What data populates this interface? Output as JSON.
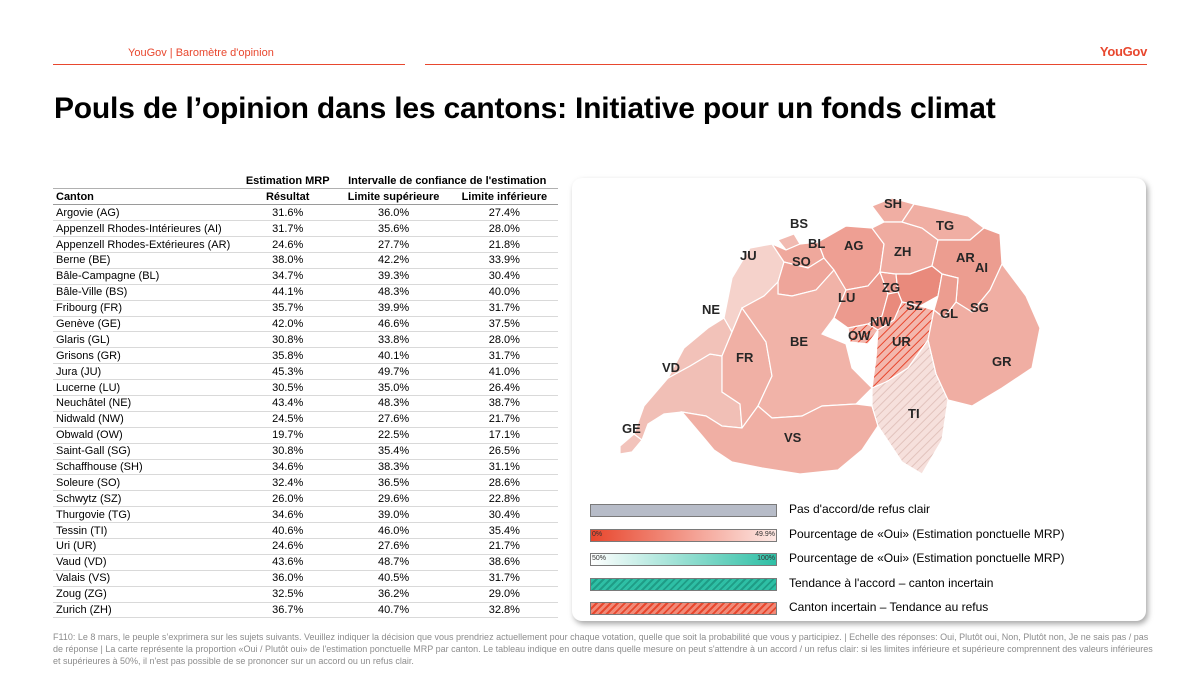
{
  "header": {
    "left_label": "YouGov | Baromètre d'opinion",
    "logo": "YouGov"
  },
  "title": "Pouls de l’opinion dans les cantons: Initiative pour un fonds climat",
  "table": {
    "group_headers": [
      "Estimation MRP",
      "Intervalle de confiance de l'estimation"
    ],
    "columns": [
      "Canton",
      "Résultat",
      "Limite supérieure",
      "Limite inférieure"
    ],
    "rows": [
      [
        "Argovie (AG)",
        "31.6%",
        "36.0%",
        "27.4%"
      ],
      [
        "Appenzell Rhodes-Intérieures (AI)",
        "31.7%",
        "35.6%",
        "28.0%"
      ],
      [
        "Appenzell Rhodes-Extérieures (AR)",
        "24.6%",
        "27.7%",
        "21.8%"
      ],
      [
        "Berne (BE)",
        "38.0%",
        "42.2%",
        "33.9%"
      ],
      [
        "Bâle-Campagne (BL)",
        "34.7%",
        "39.3%",
        "30.4%"
      ],
      [
        "Bâle-Ville (BS)",
        "44.1%",
        "48.3%",
        "40.0%"
      ],
      [
        "Fribourg (FR)",
        "35.7%",
        "39.9%",
        "31.7%"
      ],
      [
        "Genève (GE)",
        "42.0%",
        "46.6%",
        "37.5%"
      ],
      [
        "Glaris (GL)",
        "30.8%",
        "33.8%",
        "28.0%"
      ],
      [
        "Grisons (GR)",
        "35.8%",
        "40.1%",
        "31.7%"
      ],
      [
        "Jura (JU)",
        "45.3%",
        "49.7%",
        "41.0%"
      ],
      [
        "Lucerne (LU)",
        "30.5%",
        "35.0%",
        "26.4%"
      ],
      [
        "Neuchâtel (NE)",
        "43.4%",
        "48.3%",
        "38.7%"
      ],
      [
        "Nidwald (NW)",
        "24.5%",
        "27.6%",
        "21.7%"
      ],
      [
        "Obwald (OW)",
        "19.7%",
        "22.5%",
        "17.1%"
      ],
      [
        "Saint-Gall (SG)",
        "30.8%",
        "35.4%",
        "26.5%"
      ],
      [
        "Schaffhouse (SH)",
        "34.6%",
        "38.3%",
        "31.1%"
      ],
      [
        "Soleure (SO)",
        "32.4%",
        "36.5%",
        "28.6%"
      ],
      [
        "Schwytz (SZ)",
        "26.0%",
        "29.6%",
        "22.8%"
      ],
      [
        "Thurgovie (TG)",
        "34.6%",
        "39.0%",
        "30.4%"
      ],
      [
        "Tessin (TI)",
        "40.6%",
        "46.0%",
        "35.4%"
      ],
      [
        "Uri (UR)",
        "24.6%",
        "27.6%",
        "21.7%"
      ],
      [
        "Vaud (VD)",
        "43.6%",
        "48.7%",
        "38.6%"
      ],
      [
        "Valais (VS)",
        "36.0%",
        "40.5%",
        "31.7%"
      ],
      [
        "Zoug (ZG)",
        "32.5%",
        "36.2%",
        "29.0%"
      ],
      [
        "Zurich (ZH)",
        "36.7%",
        "40.7%",
        "32.8%"
      ]
    ]
  },
  "map": {
    "labels": [
      "SH",
      "BS",
      "TG",
      "BL",
      "AG",
      "ZH",
      "JU",
      "SO",
      "AR",
      "AI",
      "ZG",
      "LU",
      "SZ",
      "SG",
      "NE",
      "NW",
      "GL",
      "OW",
      "UR",
      "BE",
      "FR",
      "GR",
      "VD",
      "TI",
      "GE",
      "VS"
    ]
  },
  "legend": {
    "items": [
      "Pas d'accord/de refus clair",
      "Pourcentage de «Oui» (Estimation ponctuelle MRP)",
      "Pourcentage de «Oui» (Estimation ponctuelle MRP)",
      "Tendance à l'accord – canton incertain",
      "Canton incertain – Tendance au refus"
    ],
    "red_scale": [
      "0%",
      "49.9%"
    ],
    "green_scale": [
      "50%",
      "100%"
    ],
    "colors": {
      "refus": "#b7bcc8",
      "red_low": "#e8472e",
      "green_high": "#2ebfa5"
    }
  },
  "footnote": "F110: Le 8 mars, le peuple s’exprimera sur les sujets suivants. Veuillez indiquer la décision que vous prendriez actuellement pour chaque votation, quelle que soit la probabilité que vous y participiez. | Echelle des réponses: Oui, Plutôt oui, Non, Plutôt non, Je ne sais pas / pas de réponse | La carte représente la proportion «Oui / Plutôt oui» de l'estimation ponctuelle MRP par canton. Le tableau indique en outre dans quelle mesure on peut s'attendre à un accord / un refus clair: si les limites inférieure et supérieure comprennent des valeurs inférieures et supérieures à 50%, il n'est pas possible de se prononcer sur un accord ou un refus clair."
}
